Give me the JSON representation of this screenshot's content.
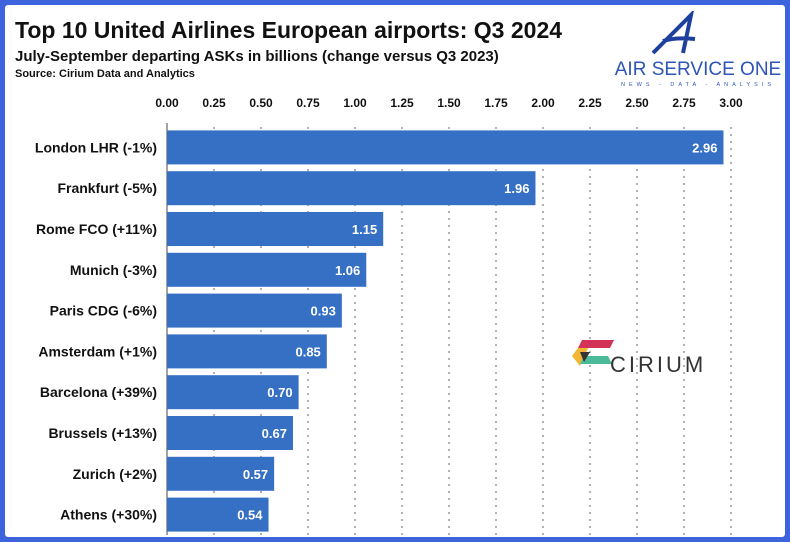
{
  "title": "Top 10 United Airlines European airports: Q3 2024",
  "subtitle": "July-September departing ASKs in billions (change versus Q3 2023)",
  "source": "Source: Cirium Data and Analytics",
  "logos": {
    "air_service_one": "AIR SERVICE ONE",
    "air_service_one_tagline": "NEWS - DATA - ANALYSIS",
    "cirium": "CIRIUM"
  },
  "colors": {
    "bar": "#3570c4",
    "frame": "#3d63dd"
  },
  "chart_data": {
    "type": "bar",
    "orientation": "horizontal",
    "categories": [
      "London LHR (-1%)",
      "Frankfurt (-5%)",
      "Rome FCO (+11%)",
      "Munich (-3%)",
      "Paris CDG (-6%)",
      "Amsterdam (+1%)",
      "Barcelona (+39%)",
      "Brussels (+13%)",
      "Zurich (+2%)",
      "Athens (+30%)"
    ],
    "values": [
      2.96,
      1.96,
      1.15,
      1.06,
      0.93,
      0.85,
      0.7,
      0.67,
      0.57,
      0.54
    ],
    "data_labels": [
      "2.96",
      "1.96",
      "1.15",
      "1.06",
      "0.93",
      "0.85",
      "0.70",
      "0.67",
      "0.57",
      "0.54"
    ],
    "xlim": [
      0,
      3
    ],
    "ticks": [
      "0.00",
      "0.25",
      "0.50",
      "0.75",
      "1.00",
      "1.25",
      "1.50",
      "1.75",
      "2.00",
      "2.25",
      "2.50",
      "2.75",
      "3.00"
    ],
    "tick_position": "top",
    "grid": "vertical dashed",
    "legend": "none"
  }
}
